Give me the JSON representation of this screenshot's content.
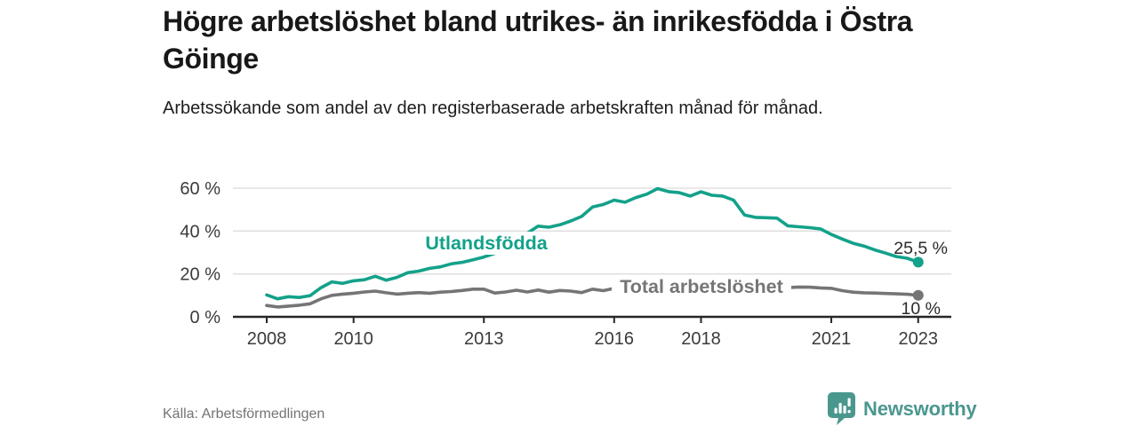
{
  "header": {
    "title": "Högre arbetslöshet bland utrikes- än inrikesfödda i Östra Göinge",
    "subtitle": "Arbetssökande som andel av den registerbaserade arbetskraften månad för månad."
  },
  "chart_data": {
    "type": "line",
    "title": "Högre arbetslöshet bland utrikes- än inrikesfödda i Östra Göinge",
    "subtitle": "Arbetssökande som andel av den registerbaserade arbetskraften månad för månad.",
    "unit": "%",
    "gridlines": "horizontal",
    "legend": "inline-labels-on-lines",
    "x_axis": {
      "label": "",
      "range_years": [
        2007.2,
        2023.8
      ],
      "ticks": [
        2008,
        2010,
        2013,
        2016,
        2018,
        2021,
        2023
      ]
    },
    "y_axis": {
      "label": "",
      "range": [
        0,
        62
      ],
      "ticks": [
        {
          "value": 0,
          "label": "0 %"
        },
        {
          "value": 20,
          "label": "20 %"
        },
        {
          "value": 40,
          "label": "40 %"
        },
        {
          "value": 60,
          "label": "60 %"
        }
      ]
    },
    "series": [
      {
        "id": "utlandsfodda",
        "name": "Utlandsfödda",
        "color": "#13a18a",
        "end_label": "25,5 %",
        "end_value": 25.5,
        "x_start": 2008.0,
        "x_step_years": 0.25,
        "values": [
          10.2,
          8.4,
          9.4,
          9.0,
          9.9,
          13.6,
          16.3,
          15.6,
          16.8,
          17.3,
          18.9,
          17.1,
          18.4,
          20.6,
          21.3,
          22.6,
          23.3,
          24.7,
          25.4,
          26.6,
          27.9,
          29.6,
          31.0,
          34.5,
          39.0,
          42.3,
          41.8,
          42.9,
          44.7,
          46.8,
          51.2,
          52.4,
          54.4,
          53.4,
          55.6,
          57.2,
          59.8,
          58.4,
          57.9,
          56.3,
          58.3,
          56.7,
          56.3,
          54.4,
          47.5,
          46.4,
          46.2,
          46.0,
          42.4,
          42.0,
          41.6,
          41.0,
          38.4,
          36.3,
          34.3,
          33.0,
          31.2,
          29.7,
          28.1,
          27.3,
          25.5
        ]
      },
      {
        "id": "total",
        "name": "Total arbetslöshet",
        "color": "#757575",
        "end_label": "10 %",
        "end_value": 10.0,
        "x_start": 2008.0,
        "x_step_years": 0.25,
        "values": [
          5.3,
          4.6,
          5.0,
          5.4,
          6.1,
          8.4,
          10.0,
          10.6,
          11.0,
          11.6,
          12.0,
          11.2,
          10.6,
          11.0,
          11.3,
          11.0,
          11.5,
          11.8,
          12.3,
          12.9,
          12.9,
          11.1,
          11.6,
          12.4,
          11.6,
          12.5,
          11.5,
          12.3,
          12.0,
          11.3,
          12.9,
          12.2,
          13.3,
          12.9,
          13.0,
          13.1,
          13.0,
          12.8,
          12.7,
          12.9,
          12.7,
          12.5,
          12.4,
          12.6,
          12.8,
          12.7,
          12.9,
          13.2,
          13.6,
          13.9,
          13.8,
          13.5,
          13.3,
          12.2,
          11.5,
          11.2,
          11.1,
          10.9,
          10.7,
          10.5,
          10.0
        ]
      }
    ]
  },
  "footer": {
    "source": "Källa: Arbetsförmedlingen",
    "brand": "Newsworthy",
    "brand_color": "#4a978e",
    "brand_icon": "bar-chart-speech-bubble"
  }
}
